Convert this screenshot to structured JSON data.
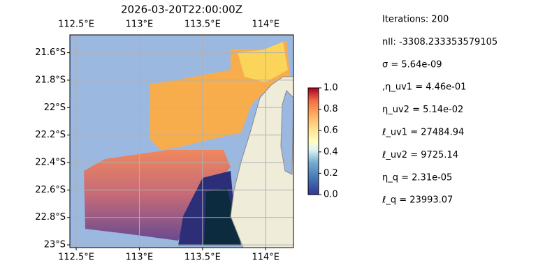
{
  "map": {
    "title": "2026-03-20T22:00:00Z",
    "xlim": [
      112.45,
      114.22
    ],
    "ylim": [
      -23.02,
      -21.47
    ],
    "xticks": [
      {
        "value": 112.5,
        "label": "112.5°E"
      },
      {
        "value": 113,
        "label": "113°E"
      },
      {
        "value": 113.5,
        "label": "113.5°E"
      },
      {
        "value": 114,
        "label": "114°E"
      }
    ],
    "yticks": [
      {
        "value": -21.6,
        "label": "21.6°S"
      },
      {
        "value": -21.8,
        "label": "21.8°S"
      },
      {
        "value": -22,
        "label": "22°S"
      },
      {
        "value": -22.2,
        "label": "22.2°S"
      },
      {
        "value": -22.4,
        "label": "22.4°S"
      },
      {
        "value": -22.6,
        "label": "22.6°S"
      },
      {
        "value": -22.8,
        "label": "22.8°S"
      },
      {
        "value": -23,
        "label": "23°S"
      }
    ],
    "grid": true
  },
  "colorbar": {
    "lim": [
      0,
      1
    ],
    "ticks": [
      {
        "value": 0,
        "label": "0.0"
      },
      0.2,
      0.4,
      0.6,
      0.8,
      {
        "value": 1,
        "label": "1.0"
      }
    ]
  },
  "stats": [
    "Iterations: 200",
    "nll: -3308.233353579105",
    "σ = 5.64e-09",
    ",η_uv1 = 4.46e-01",
    "η_uv2 = 5.14e-02",
    "ℓ_uv1 = 27484.94",
    "ℓ_uv2 = 9725.14",
    "η_q = 2.31e-05",
    "ℓ_q = 23993.07"
  ]
}
